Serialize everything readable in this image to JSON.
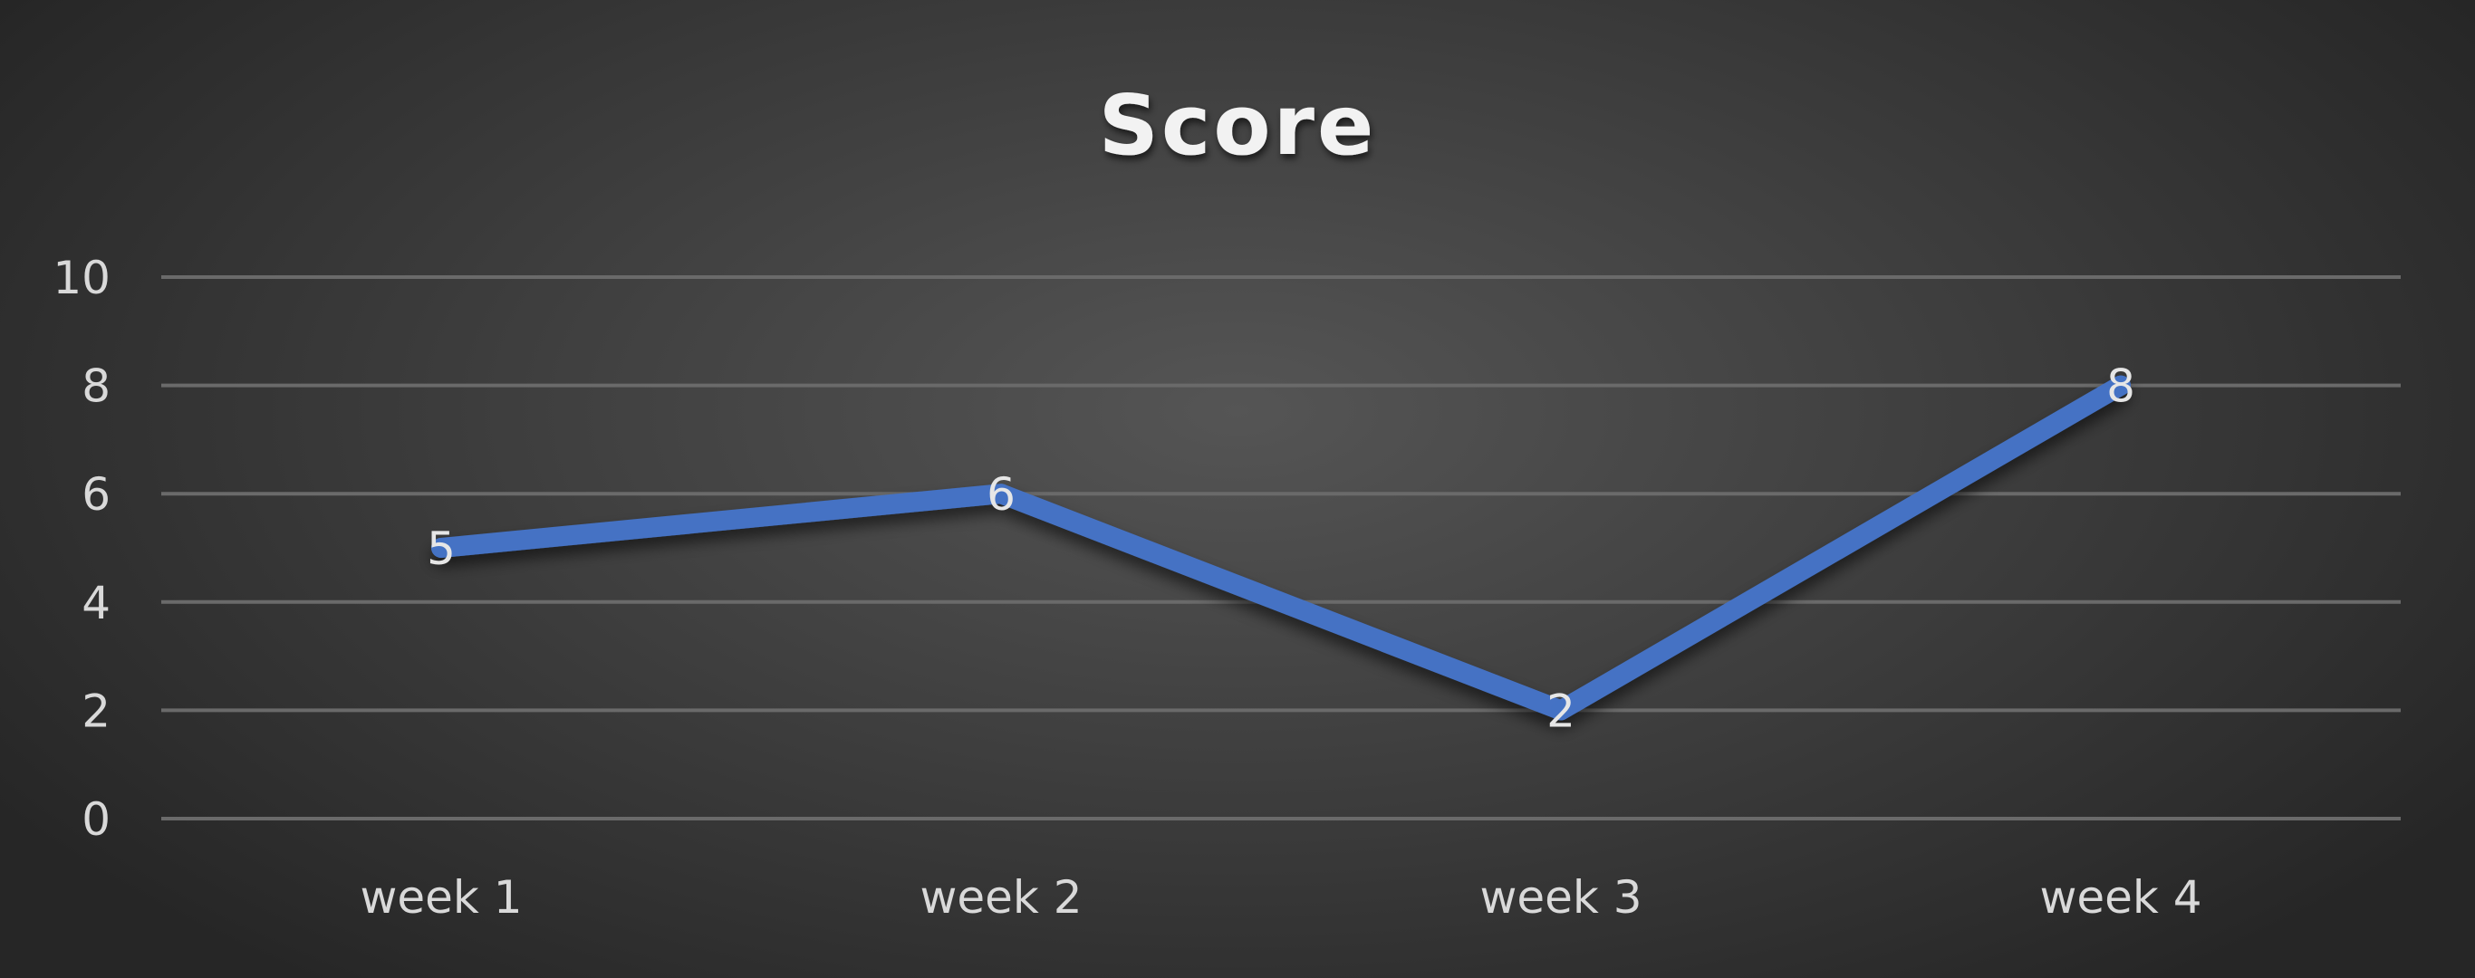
{
  "chart_data": {
    "type": "line",
    "title": "Score",
    "categories": [
      "week 1",
      "week 2",
      "week 3",
      "week 4"
    ],
    "series": [
      {
        "values": [
          5,
          6,
          2,
          8
        ],
        "color": "#4472c4"
      }
    ],
    "data_labels": true,
    "ylim": [
      0,
      10
    ],
    "yticks": [
      0,
      2,
      4,
      6,
      8,
      10
    ],
    "grid": true,
    "legend": "none",
    "xlabel": "",
    "ylabel": ""
  }
}
